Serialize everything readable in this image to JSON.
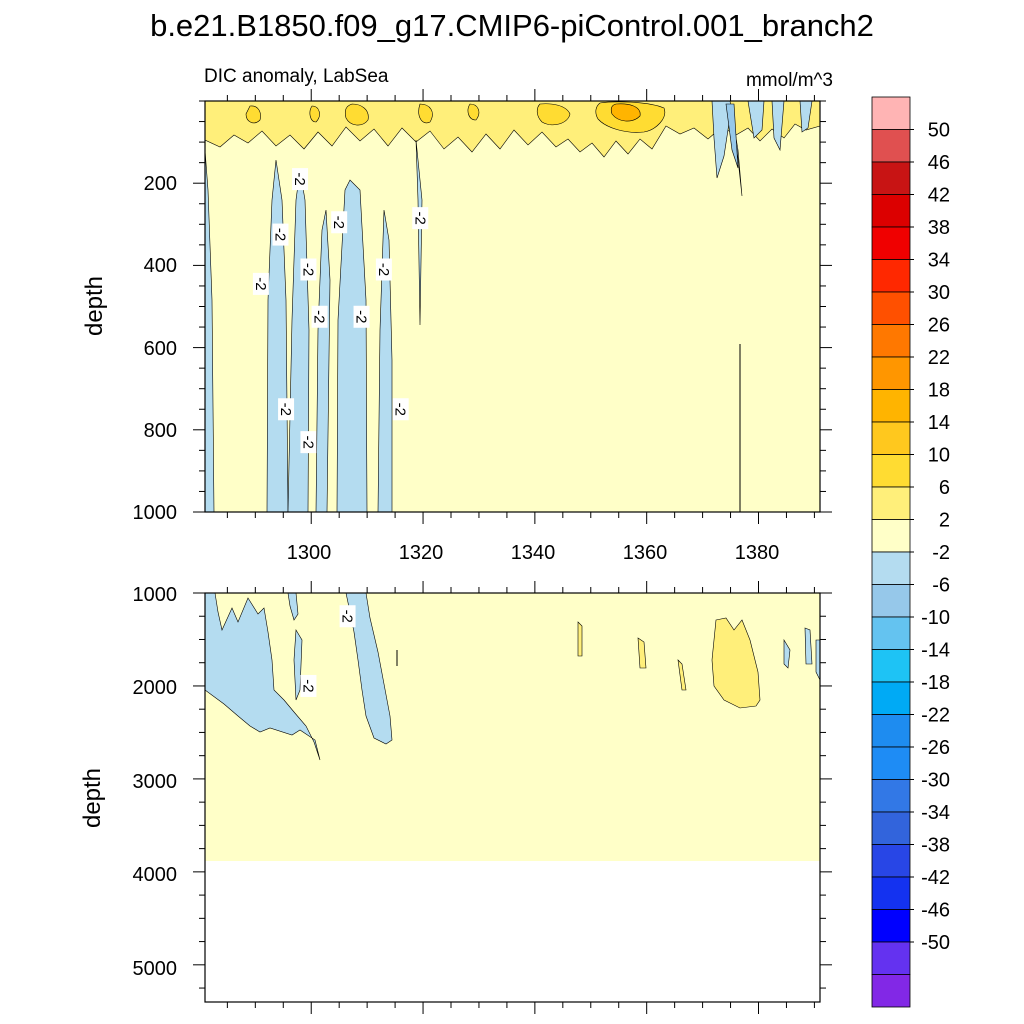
{
  "chart_data": {
    "type": "heatmap",
    "title": "b.e21.B1850.f09_g17.CMIP6-piControl.001_branch2",
    "subtitle_left": "DIC anomaly, LabSea",
    "subtitle_right": "mmol/m^3",
    "x_range": [
      1281,
      1391
    ],
    "x_ticks": [
      "1300",
      "1320",
      "1340",
      "1360",
      "1380"
    ],
    "x_tick_values": [
      1300,
      1320,
      1340,
      1360,
      1380
    ],
    "panels": [
      {
        "name": "upper",
        "ylabel": "depth",
        "y_range": [
          0,
          1000
        ],
        "y_ticks": [
          "200",
          "400",
          "600",
          "800",
          "1000"
        ],
        "y_tick_values": [
          200,
          400,
          600,
          800,
          1000
        ],
        "contour_labels": [
          {
            "text": "-2",
            "x": 1298,
            "y": 190
          },
          {
            "text": "-2",
            "x": 1305,
            "y": 295
          },
          {
            "text": "-2",
            "x": 1319.5,
            "y": 285
          },
          {
            "text": "-2",
            "x": 1294.5,
            "y": 325
          },
          {
            "text": "-2",
            "x": 1299.5,
            "y": 410
          },
          {
            "text": "-2",
            "x": 1313,
            "y": 410
          },
          {
            "text": "-2",
            "x": 1291,
            "y": 445
          },
          {
            "text": "-2",
            "x": 1301.5,
            "y": 525
          },
          {
            "text": "-2",
            "x": 1309,
            "y": 525
          },
          {
            "text": "-2",
            "x": 1295.5,
            "y": 750
          },
          {
            "text": "-2",
            "x": 1316,
            "y": 750
          },
          {
            "text": "-2",
            "x": 1299.5,
            "y": 830
          }
        ]
      },
      {
        "name": "lower",
        "ylabel": "depth",
        "y_range": [
          1000,
          5400
        ],
        "y_ticks": [
          "1000",
          "2000",
          "3000",
          "4000",
          "5000"
        ],
        "y_tick_values": [
          1000,
          2000,
          3000,
          4000,
          5000
        ],
        "ocean_floor_depth": 3860,
        "contour_labels": [
          {
            "text": "-2",
            "x": 1306.5,
            "y": 1250
          },
          {
            "text": "-2",
            "x": 1299.5,
            "y": 2000
          }
        ]
      }
    ],
    "colorbar": {
      "labels": [
        "50",
        "46",
        "42",
        "38",
        "34",
        "30",
        "26",
        "22",
        "18",
        "14",
        "10",
        "6",
        "2",
        "-2",
        "-6",
        "-10",
        "-14",
        "-18",
        "-22",
        "-26",
        "-30",
        "-34",
        "-38",
        "-42",
        "-46",
        "-50"
      ],
      "colors": [
        "#ffb4b4",
        "#e05050",
        "#c81414",
        "#dc0000",
        "#f00000",
        "#ff2800",
        "#ff5000",
        "#ff7800",
        "#ff9600",
        "#ffb400",
        "#ffc81e",
        "#ffdc32",
        "#ffef7a",
        "#ffffc8",
        "#b4dcf0",
        "#96c8ea",
        "#64c3f0",
        "#1ec3f5",
        "#00aaf5",
        "#1e8cf0",
        "#1e8cf5",
        "#3278e6",
        "#3264dc",
        "#2846e6",
        "#1432f0",
        "#0000ff",
        "#6432f0",
        "#8228e6"
      ]
    }
  }
}
